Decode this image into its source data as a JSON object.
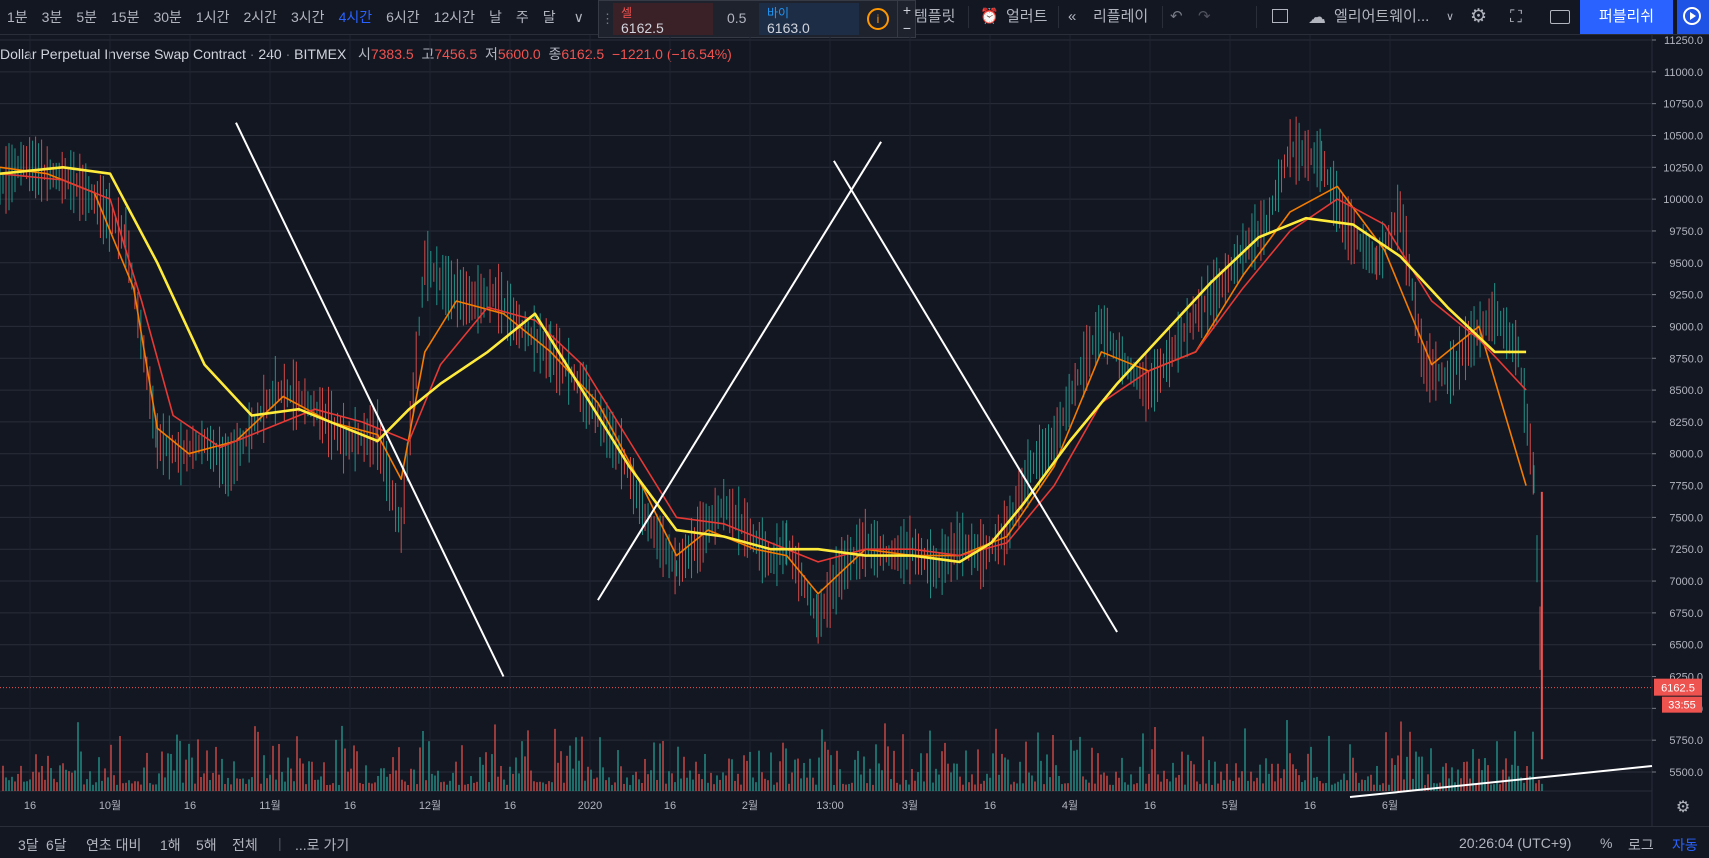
{
  "toolbar": {
    "intervals": [
      "1분",
      "3분",
      "5분",
      "15분",
      "30분",
      "1시간",
      "2시간",
      "3시간",
      "4시간",
      "6시간",
      "12시간",
      "날",
      "주",
      "달"
    ],
    "active_interval": "4시간",
    "template_label": "템플릿",
    "alert_label": "얼러트",
    "replay_label": "리플레이",
    "layout_label": "엘리어트웨이...",
    "publish_label": "퍼블리쉬"
  },
  "trade": {
    "sell_label": "셀",
    "sell_price": "6162.5",
    "spread": "0.5",
    "buy_label": "바이",
    "buy_price": "6163.0",
    "info": "i",
    "plus": "+",
    "minus": "−"
  },
  "legend": {
    "symbol": "Dollar Perpetual Inverse Swap Contract",
    "interval": "240",
    "exchange": "BITMEX",
    "open_label": "시",
    "open": "7383.5",
    "high_label": "고",
    "high": "7456.5",
    "low_label": "저",
    "low": "5600.0",
    "close_label": "종",
    "close": "6162.5",
    "change": "−1221.0 (−16.54%)"
  },
  "price_tag": {
    "price": "6162.5",
    "countdown": "33:55"
  },
  "bottombar": {
    "ranges": [
      "3달",
      "6달",
      "연초 대비",
      "1해",
      "5해",
      "전체"
    ],
    "goto_label": "...로 가기",
    "clock": "20:26:04 (UTC+9)",
    "percent_label": "%",
    "log_label": "로그",
    "auto_label": "자동"
  },
  "colors": {
    "bg": "#131722",
    "up": "#26a69a",
    "down": "#ef5350",
    "ma_fast": "#f57c00",
    "ma_mid": "#e53935",
    "ma_slow": "#ffeb3b",
    "trendline": "#ffffff",
    "accent": "#2962ff"
  },
  "chart_data": {
    "type": "line",
    "y_axis": {
      "ticks": [
        5500,
        5750,
        6000,
        6250,
        6500,
        6750,
        7000,
        7250,
        7500,
        7750,
        8000,
        8250,
        8500,
        8750,
        9000,
        9250,
        9500,
        9750,
        10000,
        10250,
        10500,
        10750,
        11000,
        11250
      ],
      "current": 6162.5
    },
    "x_axis": {
      "labels": [
        "16",
        "10월",
        "16",
        "11월",
        "16",
        "12월",
        "16",
        "2020",
        "16",
        "2월",
        "13:00",
        "3월",
        "16",
        "4월",
        "16",
        "5월",
        "16",
        "6월"
      ]
    },
    "series": [
      {
        "role": "price",
        "x": [
          0,
          3,
          6,
          9,
          12,
          16,
          20,
          23,
          26,
          29,
          32,
          35,
          38,
          41,
          44,
          48,
          51,
          54,
          57,
          60,
          63,
          66,
          70,
          73,
          76,
          79,
          82,
          86,
          89,
          92,
          95,
          98,
          100,
          104,
          107,
          110,
          113,
          116,
          119,
          122,
          125,
          128,
          131,
          134,
          137,
          140,
          143,
          146,
          149,
          152,
          155,
          158,
          161,
          164,
          168,
          171,
          175,
          178,
          181,
          184,
          187,
          190,
          193,
          195,
          196
        ],
        "y": [
          10100,
          10300,
          10200,
          10150,
          10000,
          9700,
          8100,
          8000,
          8100,
          7900,
          8200,
          8500,
          8450,
          8300,
          8100,
          8150,
          7400,
          9500,
          9300,
          9200,
          9250,
          9000,
          8800,
          8600,
          8300,
          8000,
          7500,
          7100,
          7350,
          7600,
          7400,
          7150,
          7300,
          6700,
          7100,
          7300,
          7200,
          7250,
          7100,
          7300,
          7200,
          7400,
          7900,
          8100,
          8600,
          9000,
          8700,
          8500,
          8800,
          9100,
          9300,
          9600,
          9800,
          10400,
          10300,
          9800,
          9500,
          9900,
          8700,
          8600,
          8900,
          9100,
          8800,
          7800,
          6162.5
        ]
      },
      {
        "role": "ma_fast",
        "x": [
          0,
          6,
          12,
          17,
          20,
          24,
          30,
          36,
          42,
          48,
          51,
          54,
          58,
          64,
          70,
          76,
          82,
          86,
          90,
          96,
          100,
          104,
          110,
          116,
          122,
          128,
          134,
          140,
          146,
          152,
          158,
          164,
          170,
          176,
          182,
          188,
          194
        ],
        "y": [
          10250,
          10200,
          10050,
          9300,
          8200,
          8000,
          8100,
          8450,
          8250,
          8150,
          7800,
          8800,
          9200,
          9100,
          8800,
          8400,
          7700,
          7200,
          7400,
          7250,
          7200,
          6900,
          7250,
          7200,
          7200,
          7350,
          7900,
          8800,
          8650,
          8800,
          9400,
          9900,
          10100,
          9600,
          8700,
          9000,
          7750
        ]
      },
      {
        "role": "ma_mid",
        "x": [
          0,
          8,
          14,
          18,
          22,
          28,
          34,
          40,
          46,
          52,
          56,
          62,
          68,
          74,
          80,
          86,
          92,
          98,
          104,
          110,
          116,
          122,
          128,
          134,
          140,
          146,
          152,
          158,
          164,
          170,
          176,
          182,
          188,
          194
        ],
        "y": [
          10200,
          10150,
          10000,
          9200,
          8300,
          8050,
          8200,
          8350,
          8250,
          8100,
          8700,
          9150,
          9050,
          8700,
          8100,
          7500,
          7450,
          7300,
          7150,
          7250,
          7250,
          7200,
          7300,
          7750,
          8400,
          8650,
          8800,
          9300,
          9750,
          10000,
          9800,
          9200,
          8900,
          8500
        ]
      },
      {
        "role": "ma_slow",
        "x": [
          0,
          8,
          14,
          20,
          26,
          32,
          38,
          44,
          48,
          52,
          56,
          62,
          68,
          72,
          76,
          80,
          86,
          92,
          98,
          104,
          110,
          116,
          122,
          126,
          130,
          136,
          142,
          148,
          154,
          160,
          166,
          172,
          178,
          184,
          190,
          194
        ],
        "y": [
          10200,
          10250,
          10200,
          9500,
          8700,
          8300,
          8350,
          8200,
          8100,
          8350,
          8550,
          8800,
          9100,
          8700,
          8300,
          7900,
          7400,
          7350,
          7250,
          7250,
          7200,
          7200,
          7150,
          7300,
          7600,
          8100,
          8550,
          8950,
          9350,
          9700,
          9850,
          9800,
          9550,
          9150,
          8800,
          8800
        ]
      },
      {
        "role": "trendline",
        "x": [
          30,
          64
        ],
        "y": [
          10600,
          6250
        ]
      },
      {
        "role": "trendline",
        "x": [
          76,
          112
        ],
        "y": [
          6850,
          10450
        ]
      },
      {
        "role": "trendline",
        "x": [
          106,
          142
        ],
        "y": [
          10300,
          6600
        ]
      }
    ]
  }
}
